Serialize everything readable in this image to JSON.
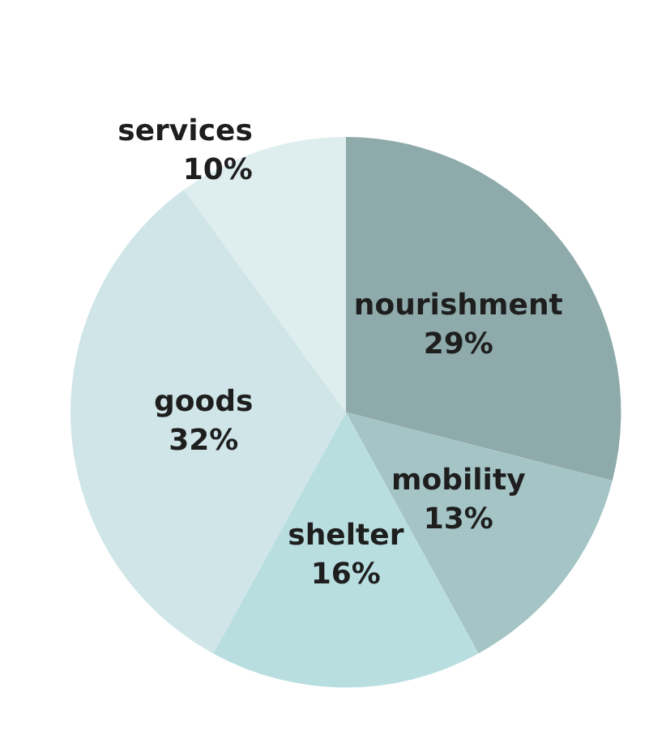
{
  "chart_data": {
    "type": "pie",
    "categories": [
      "nourishment",
      "mobility",
      "shelter",
      "goods",
      "services"
    ],
    "values": [
      29,
      13,
      16,
      32,
      10
    ],
    "value_labels": [
      "29%",
      "13%",
      "16%",
      "32%",
      "10%"
    ],
    "colors": [
      "#8eaaaa",
      "#a4c4c5",
      "#b9dee0",
      "#cfe5e8",
      "#deedee"
    ],
    "legend": false
  }
}
